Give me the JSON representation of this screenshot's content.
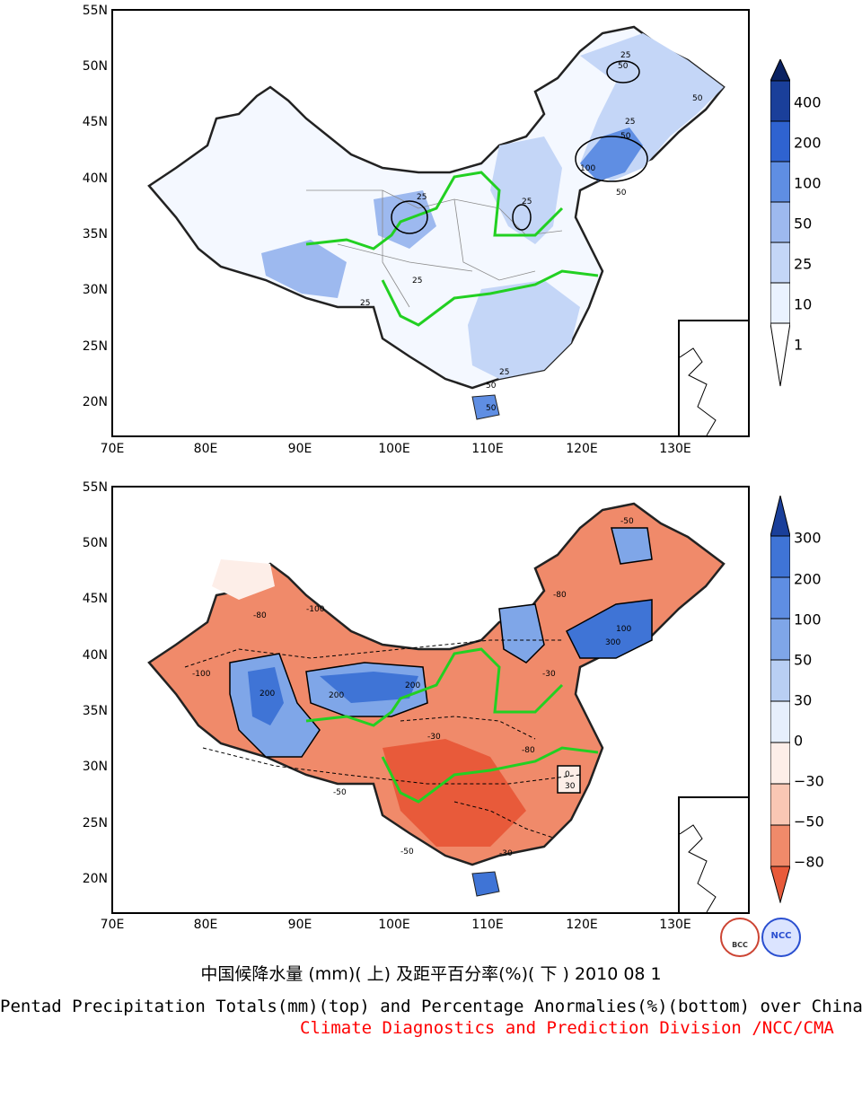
{
  "top_map": {
    "lat_labels": [
      "55N",
      "50N",
      "45N",
      "40N",
      "35N",
      "30N",
      "25N",
      "20N"
    ],
    "lon_labels": [
      "70E",
      "80E",
      "90E",
      "100E",
      "110E",
      "120E",
      "130E"
    ],
    "contour_labels": [
      "25",
      "50",
      "25",
      "50",
      "100",
      "50",
      "25",
      "25",
      "25",
      "25",
      "50",
      "50",
      "25",
      "50"
    ],
    "colorbar_labels": [
      "400",
      "200",
      "100",
      "50",
      "25",
      "10",
      "1"
    ]
  },
  "bottom_map": {
    "lat_labels": [
      "55N",
      "50N",
      "45N",
      "40N",
      "35N",
      "30N",
      "25N",
      "20N"
    ],
    "lon_labels": [
      "70E",
      "80E",
      "90E",
      "100E",
      "110E",
      "120E",
      "130E"
    ],
    "contour_labels": [
      "-100",
      "200",
      "300",
      "100",
      "-80",
      "-50",
      "200",
      "-30",
      "0",
      "30",
      "-100",
      "-80",
      "-50",
      "-30",
      "200",
      "-80",
      "-50",
      "-30"
    ],
    "colorbar_labels": [
      "300",
      "200",
      "100",
      "50",
      "30",
      "0",
      "−30",
      "−50",
      "−80"
    ]
  },
  "title_cn": "中国候降水量 (mm)( 上) 及距平百分率(%)( 下 ) 2010 08 1",
  "title_en": "Pentad Precipitation Totals(mm)(top) and Percentage Anormalies(%)(bottom) over China",
  "credit": "Climate Diagnostics and Prediction Division /NCC/CMA",
  "logos": [
    "BCC",
    "NCC"
  ],
  "colors": {
    "river": "#22d022",
    "border": "#222222",
    "credit": "#ff0000",
    "top_scale": [
      "#ffffff",
      "#eaf2ff",
      "#c4d6f7",
      "#9db9ef",
      "#5f8ee3",
      "#2f63d0",
      "#1a3f9a",
      "#0a2262"
    ],
    "bottom_scale": [
      "#e85a3a",
      "#f08a6a",
      "#f9c7b4",
      "#fdeee8",
      "#e6effc",
      "#b9cff3",
      "#7fa6e8",
      "#3f74d6",
      "#1a3f9a"
    ]
  }
}
